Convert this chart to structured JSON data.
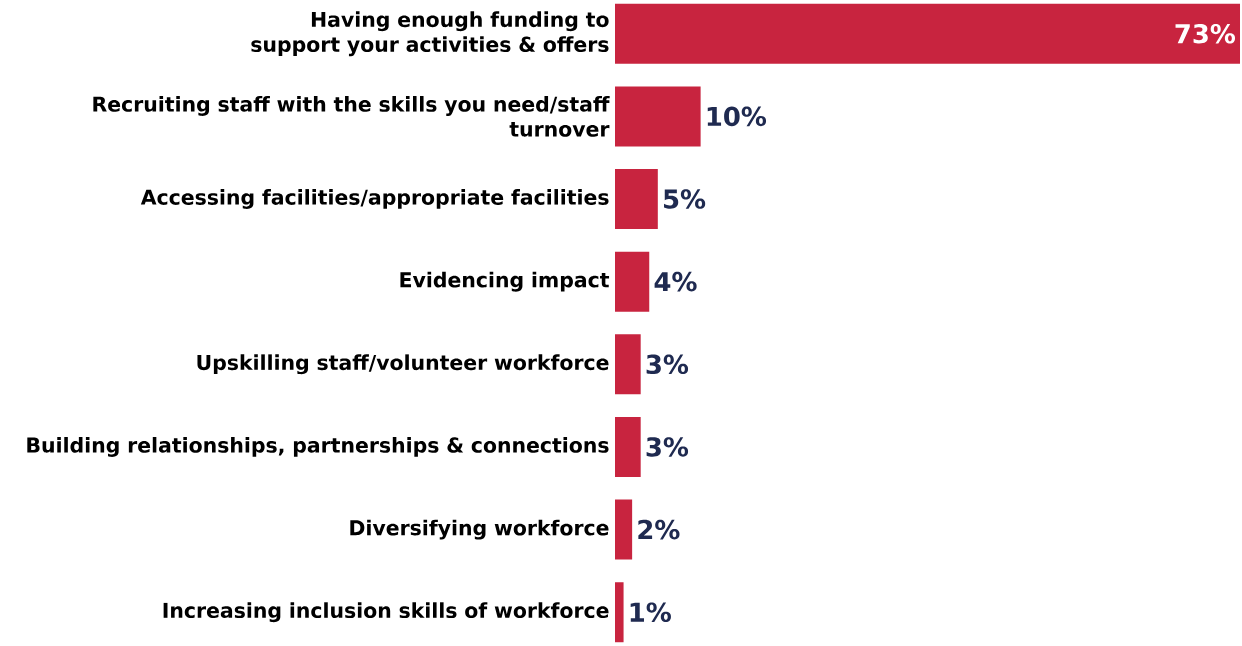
{
  "chart_data": {
    "type": "bar",
    "orientation": "horizontal",
    "categories": [
      "Having enough funding to support your activities & offers",
      "Recruiting staff with the skills you need/staff turnover",
      "Accessing facilities/appropriate facilities",
      "Evidencing impact",
      "Upskilling staff/volunteer workforce",
      "Building relationships, partnerships & connections",
      "Diversifying workforce",
      "Increasing inclusion skills of workforce"
    ],
    "values": [
      73,
      10,
      5,
      4,
      3,
      3,
      2,
      1
    ],
    "value_labels": [
      "73%",
      "10%",
      "5%",
      "4%",
      "3%",
      "3%",
      "2%",
      "1%"
    ],
    "color": "#c8243f"
  }
}
